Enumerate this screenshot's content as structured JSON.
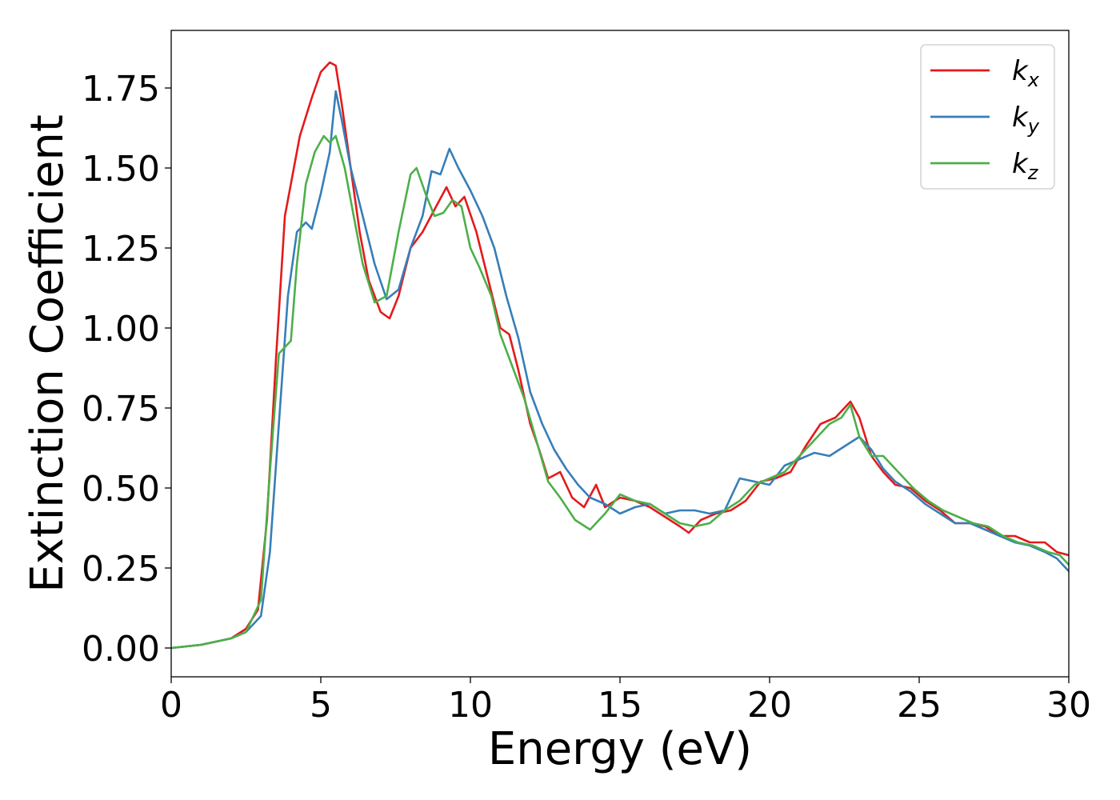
{
  "chart_data": {
    "type": "line",
    "title": "",
    "xlabel": "Energy (eV)",
    "ylabel": "Extinction Coefficient",
    "xlim": [
      0,
      30
    ],
    "ylim": [
      -0.09,
      1.93
    ],
    "xticks": [
      0,
      5,
      10,
      15,
      20,
      25,
      30
    ],
    "xtick_labels": [
      "0",
      "5",
      "10",
      "15",
      "20",
      "25",
      "30"
    ],
    "yticks": [
      0.0,
      0.25,
      0.5,
      0.75,
      1.0,
      1.25,
      1.5,
      1.75
    ],
    "ytick_labels": [
      "0.00",
      "0.25",
      "0.50",
      "0.75",
      "1.00",
      "1.25",
      "1.50",
      "1.75"
    ],
    "grid": false,
    "legend_position": "top-right",
    "series": [
      {
        "name": "k_x",
        "legend_base": "k",
        "legend_sub": "x",
        "color": "#e41a1c",
        "x": [
          0,
          1,
          2,
          2.5,
          2.9,
          3.2,
          3.5,
          3.8,
          4.0,
          4.3,
          4.7,
          5.0,
          5.3,
          5.5,
          5.7,
          6.0,
          6.3,
          6.6,
          7.0,
          7.3,
          7.6,
          8.0,
          8.4,
          8.8,
          9.2,
          9.5,
          9.8,
          10.2,
          10.6,
          11.0,
          11.3,
          11.6,
          12.0,
          12.3,
          12.6,
          13.0,
          13.4,
          13.8,
          14.2,
          14.5,
          15.0,
          15.5,
          16.0,
          16.5,
          17.0,
          17.3,
          17.7,
          18.2,
          18.7,
          19.2,
          19.7,
          20.2,
          20.7,
          21.2,
          21.7,
          22.2,
          22.7,
          23.0,
          23.4,
          23.8,
          24.2,
          24.7,
          25.2,
          25.7,
          26.2,
          26.7,
          27.2,
          27.7,
          28.2,
          28.7,
          29.2,
          29.6,
          30.0
        ],
        "y": [
          0.0,
          0.01,
          0.03,
          0.06,
          0.12,
          0.4,
          0.9,
          1.35,
          1.45,
          1.6,
          1.72,
          1.8,
          1.83,
          1.82,
          1.7,
          1.5,
          1.3,
          1.15,
          1.05,
          1.03,
          1.1,
          1.25,
          1.3,
          1.37,
          1.44,
          1.38,
          1.41,
          1.3,
          1.15,
          1.0,
          0.98,
          0.87,
          0.7,
          0.62,
          0.53,
          0.55,
          0.47,
          0.44,
          0.51,
          0.44,
          0.47,
          0.46,
          0.44,
          0.41,
          0.38,
          0.36,
          0.4,
          0.42,
          0.43,
          0.46,
          0.52,
          0.53,
          0.55,
          0.63,
          0.7,
          0.72,
          0.77,
          0.72,
          0.6,
          0.55,
          0.51,
          0.5,
          0.46,
          0.43,
          0.39,
          0.39,
          0.38,
          0.35,
          0.35,
          0.33,
          0.33,
          0.3,
          0.29
        ]
      },
      {
        "name": "k_y",
        "legend_base": "k",
        "legend_sub": "y",
        "color": "#377eb8",
        "x": [
          0,
          1,
          2,
          2.5,
          3.0,
          3.3,
          3.6,
          3.9,
          4.2,
          4.5,
          4.7,
          5.0,
          5.3,
          5.5,
          5.7,
          6.0,
          6.4,
          6.8,
          7.2,
          7.6,
          8.0,
          8.4,
          8.7,
          9.0,
          9.3,
          9.6,
          10.0,
          10.4,
          10.8,
          11.2,
          11.6,
          12.0,
          12.4,
          12.8,
          13.2,
          13.6,
          14.0,
          14.5,
          15.0,
          15.5,
          16.0,
          16.5,
          17.0,
          17.5,
          18.0,
          18.5,
          19.0,
          19.5,
          20.0,
          20.5,
          21.0,
          21.5,
          22.0,
          22.5,
          23.0,
          23.4,
          23.8,
          24.2,
          24.7,
          25.2,
          25.7,
          26.2,
          26.7,
          27.2,
          27.7,
          28.2,
          28.7,
          29.2,
          29.6,
          30.0
        ],
        "y": [
          0.0,
          0.01,
          0.03,
          0.05,
          0.1,
          0.3,
          0.7,
          1.1,
          1.3,
          1.33,
          1.31,
          1.42,
          1.55,
          1.74,
          1.65,
          1.5,
          1.35,
          1.2,
          1.09,
          1.12,
          1.25,
          1.35,
          1.49,
          1.48,
          1.56,
          1.5,
          1.43,
          1.35,
          1.25,
          1.1,
          0.97,
          0.8,
          0.7,
          0.62,
          0.56,
          0.51,
          0.47,
          0.45,
          0.42,
          0.44,
          0.45,
          0.42,
          0.43,
          0.43,
          0.42,
          0.43,
          0.53,
          0.52,
          0.51,
          0.57,
          0.59,
          0.61,
          0.6,
          0.63,
          0.66,
          0.62,
          0.56,
          0.52,
          0.49,
          0.45,
          0.42,
          0.39,
          0.39,
          0.37,
          0.35,
          0.33,
          0.32,
          0.3,
          0.28,
          0.24
        ]
      },
      {
        "name": "k_z",
        "legend_base": "k",
        "legend_sub": "z",
        "color": "#4daf4a",
        "x": [
          0,
          1,
          2,
          2.5,
          3.0,
          3.3,
          3.6,
          3.8,
          4.0,
          4.2,
          4.5,
          4.8,
          5.1,
          5.3,
          5.5,
          5.8,
          6.1,
          6.4,
          6.8,
          7.2,
          7.6,
          8.0,
          8.2,
          8.5,
          8.8,
          9.1,
          9.4,
          9.7,
          10.0,
          10.3,
          10.7,
          11.0,
          11.4,
          11.8,
          12.2,
          12.6,
          13.0,
          13.5,
          14.0,
          14.5,
          15.0,
          15.5,
          16.0,
          16.5,
          17.0,
          17.5,
          18.0,
          18.5,
          19.0,
          19.5,
          20.0,
          20.5,
          21.0,
          21.5,
          22.0,
          22.4,
          22.7,
          23.0,
          23.4,
          23.8,
          24.3,
          24.8,
          25.3,
          25.8,
          26.3,
          26.8,
          27.3,
          27.8,
          28.3,
          28.8,
          29.3,
          29.7,
          30.0
        ],
        "y": [
          0.0,
          0.01,
          0.03,
          0.05,
          0.15,
          0.55,
          0.92,
          0.94,
          0.96,
          1.2,
          1.45,
          1.55,
          1.6,
          1.58,
          1.6,
          1.5,
          1.35,
          1.2,
          1.08,
          1.1,
          1.3,
          1.48,
          1.5,
          1.42,
          1.35,
          1.36,
          1.4,
          1.38,
          1.25,
          1.19,
          1.1,
          0.98,
          0.88,
          0.78,
          0.65,
          0.52,
          0.47,
          0.4,
          0.37,
          0.42,
          0.48,
          0.46,
          0.45,
          0.42,
          0.39,
          0.38,
          0.39,
          0.43,
          0.46,
          0.51,
          0.53,
          0.55,
          0.6,
          0.65,
          0.7,
          0.72,
          0.76,
          0.66,
          0.6,
          0.6,
          0.55,
          0.5,
          0.46,
          0.43,
          0.41,
          0.39,
          0.38,
          0.35,
          0.33,
          0.32,
          0.3,
          0.29,
          0.26
        ]
      }
    ]
  }
}
